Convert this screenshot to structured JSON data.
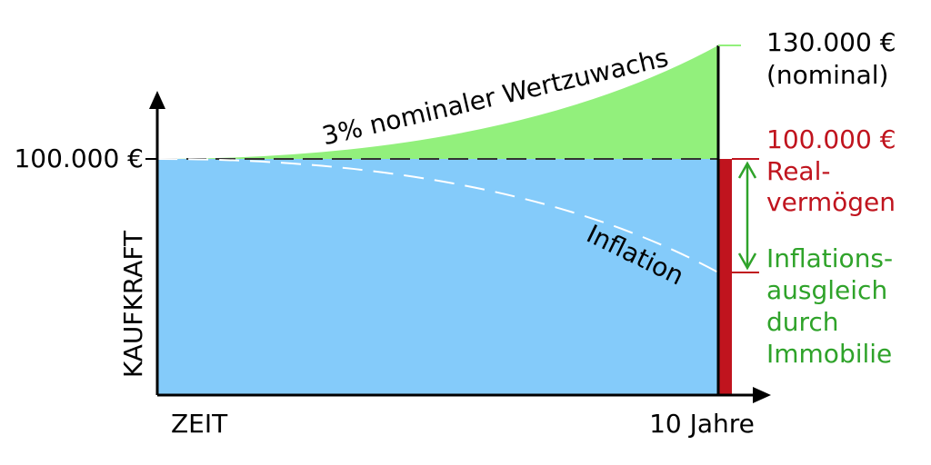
{
  "axes": {
    "y_label": "KAUFKRAFT",
    "y_value": "100.000 €",
    "x_start": "ZEIT",
    "x_end": "10 Jahre"
  },
  "curves": {
    "nominal": "3% nominaler Wertzuwachs",
    "inflation": "Inflation"
  },
  "right_labels": {
    "nominal_value": "130.000 €",
    "nominal_note": "(nominal)",
    "real_value": "100.000 €",
    "real_lines": [
      "Real-",
      "vermögen"
    ],
    "compensation_lines": [
      "Inflations-",
      "ausgleich",
      "durch",
      "Immobilie"
    ]
  }
}
